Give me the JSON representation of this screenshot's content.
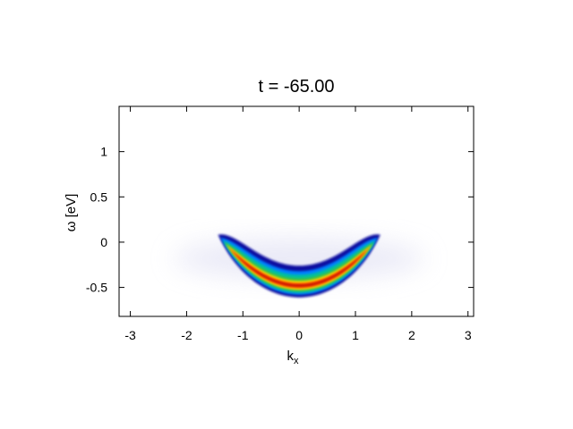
{
  "chart_data": {
    "type": "heatmap",
    "title": "t = -65.00",
    "xlabel": "k",
    "xlabel_subscript": "x",
    "ylabel": "ω [eV]",
    "xlim": [
      -3.2,
      3.1
    ],
    "ylim": [
      -0.82,
      1.5
    ],
    "xticks": [
      -3,
      -2,
      -1,
      0,
      1,
      2,
      3
    ],
    "yticks": [
      -0.5,
      0,
      0.5,
      1
    ],
    "xtick_labels": [
      "-3",
      "-2",
      "-1",
      "0",
      "1",
      "2",
      "3"
    ],
    "ytick_labels": [
      "-0.5",
      "0",
      "0.5",
      "1"
    ],
    "grid": false,
    "colormap": [
      "#ffffff",
      "#1010a0",
      "#0080ff",
      "#00c0a0",
      "#40c040",
      "#ffe000",
      "#ff6000",
      "#c00000"
    ],
    "band": {
      "description_free": true,
      "k_range": [
        -1.4,
        1.4
      ],
      "bottom_energy": -0.48,
      "top_energy": 0.05,
      "intensity_peak": 1.0
    }
  }
}
